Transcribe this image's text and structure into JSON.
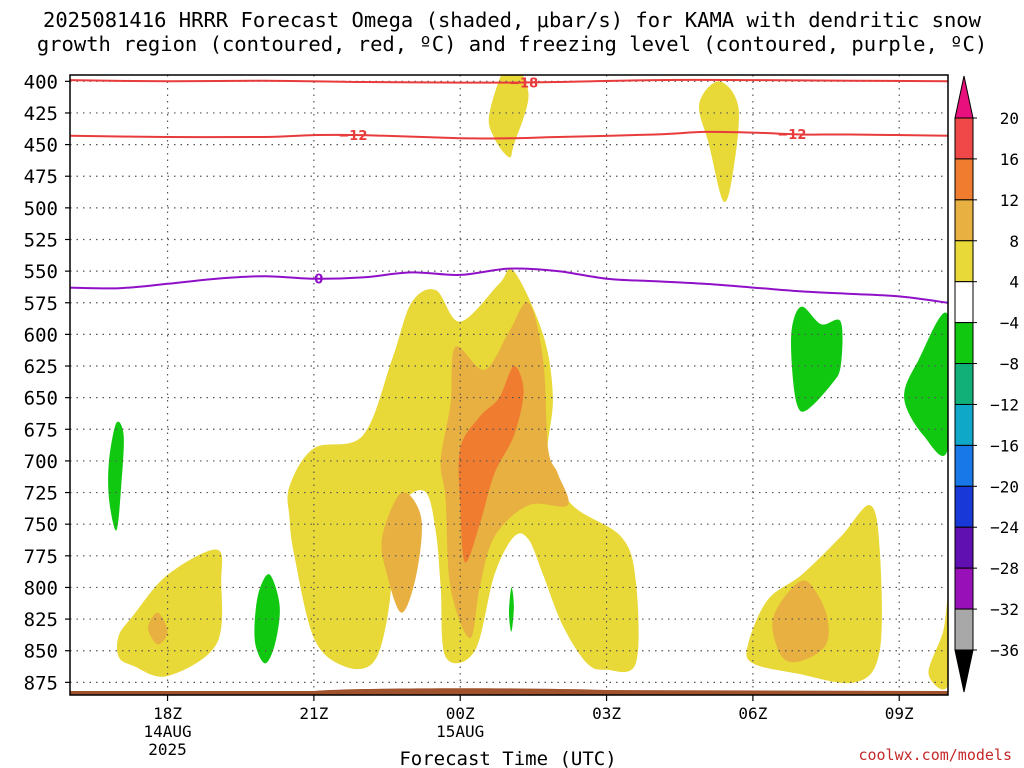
{
  "title_lines": [
    "2025081416 HRRR Forecast Omega (shaded, μbar/s) for KAMA with dendritic snow",
    "growth region (contoured, red, ºC) and freezing level (contoured, purple, ºC)"
  ],
  "credit": "coolwx.com/models",
  "chart_data": {
    "type": "time-height contour",
    "xlabel": "Forecast Time (UTC)",
    "ylabel": "",
    "x_ticks": [
      {
        "hour": 2,
        "label": "18Z",
        "sub": [
          "14AUG",
          "2025"
        ]
      },
      {
        "hour": 5,
        "label": "21Z",
        "sub": []
      },
      {
        "hour": 8,
        "label": "00Z",
        "sub": [
          "15AUG"
        ]
      },
      {
        "hour": 11,
        "label": "03Z",
        "sub": []
      },
      {
        "hour": 14,
        "label": "06Z",
        "sub": []
      },
      {
        "hour": 17,
        "label": "09Z",
        "sub": []
      }
    ],
    "xlim_hours": [
      0,
      18
    ],
    "y_ticks": [
      400,
      425,
      450,
      475,
      500,
      525,
      550,
      575,
      600,
      625,
      650,
      675,
      700,
      725,
      750,
      775,
      800,
      825,
      850,
      875
    ],
    "ylim_hPa": [
      395,
      885
    ],
    "colorbar": {
      "labels": [
        "20",
        "16",
        "12",
        "8",
        "4",
        "−4",
        "−8",
        "−12",
        "−16",
        "−20",
        "−24",
        "−28",
        "−32",
        "−36"
      ],
      "colors": [
        "#f04848",
        "#f07c30",
        "#e8b040",
        "#e8d838",
        "#ffffff",
        "#10c810",
        "#10b078",
        "#10a8c8",
        "#1878e8",
        "#1838d8",
        "#6010b0",
        "#9810b8",
        "#a8a8a8"
      ],
      "top_arrow_color": "#e8107c",
      "bottom_arrow_color": "#000000"
    },
    "contours": [
      {
        "label": "−18",
        "color": "#e83c3c",
        "points": [
          [
            0,
            399
          ],
          [
            2,
            400
          ],
          [
            4,
            399.5
          ],
          [
            6,
            400.5
          ],
          [
            8,
            401
          ],
          [
            9,
            401
          ],
          [
            10,
            400.5
          ],
          [
            12,
            399
          ],
          [
            14,
            399
          ],
          [
            16,
            399.5
          ],
          [
            18,
            400
          ]
        ]
      },
      {
        "label": "−12",
        "color": "#e83c3c",
        "points": [
          [
            0,
            443
          ],
          [
            2,
            444
          ],
          [
            4,
            444
          ],
          [
            5,
            442.5
          ],
          [
            6,
            442.5
          ],
          [
            8,
            445
          ],
          [
            9,
            445
          ],
          [
            10,
            444
          ],
          [
            12,
            442
          ],
          [
            13,
            440
          ],
          [
            14,
            440.5
          ],
          [
            15,
            442
          ],
          [
            16,
            442
          ],
          [
            18,
            443
          ]
        ]
      },
      {
        "label": "0",
        "color": "#9010c8",
        "points": [
          [
            0,
            563
          ],
          [
            1,
            563.5
          ],
          [
            2,
            560
          ],
          [
            3,
            556
          ],
          [
            4,
            554
          ],
          [
            5,
            556
          ],
          [
            6,
            555
          ],
          [
            7,
            551
          ],
          [
            8,
            553
          ],
          [
            9,
            548
          ],
          [
            10,
            550
          ],
          [
            11,
            556
          ],
          [
            12,
            558
          ],
          [
            13,
            560
          ],
          [
            14,
            563
          ],
          [
            15,
            566
          ],
          [
            16,
            568
          ],
          [
            17,
            570
          ],
          [
            18,
            575
          ]
        ]
      }
    ],
    "omega_regions": [
      {
        "value": 4,
        "color": "#e8d838",
        "points": [
          [
            1,
            838
          ],
          [
            1.3,
            822
          ],
          [
            2,
            790
          ],
          [
            3,
            770
          ],
          [
            3.1,
            795
          ],
          [
            3,
            845
          ],
          [
            2,
            870
          ],
          [
            1.3,
            862
          ],
          [
            1,
            855
          ]
        ]
      },
      {
        "value": 4,
        "color": "#e8d838",
        "points": [
          [
            4.5,
            720
          ],
          [
            5,
            690
          ],
          [
            6,
            680
          ],
          [
            6.6,
            620
          ],
          [
            7,
            575
          ],
          [
            7.5,
            565
          ],
          [
            8,
            590
          ],
          [
            8.8,
            560
          ],
          [
            9.1,
            550
          ],
          [
            9.7,
            600
          ],
          [
            9.9,
            650
          ],
          [
            9.8,
            700
          ],
          [
            10.3,
            735
          ],
          [
            11.3,
            760
          ],
          [
            11.6,
            795
          ],
          [
            11.6,
            860
          ],
          [
            11,
            865
          ],
          [
            10.6,
            860
          ],
          [
            10.1,
            830
          ],
          [
            9.7,
            790
          ],
          [
            9.4,
            762
          ],
          [
            9.1,
            760
          ],
          [
            8.7,
            790
          ],
          [
            8.3,
            850
          ],
          [
            7.7,
            855
          ],
          [
            7.6,
            800
          ],
          [
            7.5,
            756
          ],
          [
            7.3,
            725
          ],
          [
            6.9,
            730
          ],
          [
            6.7,
            760
          ],
          [
            6.5,
            825
          ],
          [
            6.2,
            860
          ],
          [
            5.6,
            862
          ],
          [
            5,
            840
          ],
          [
            4.6,
            775
          ],
          [
            4.5,
            745
          ]
        ]
      },
      {
        "value": 4,
        "color": "#e8d838",
        "points": [
          [
            8.6,
            425
          ],
          [
            9,
            385
          ],
          [
            9.4,
            410
          ],
          [
            9.1,
            450
          ],
          [
            9,
            460
          ],
          [
            8.7,
            445
          ]
        ]
      },
      {
        "value": 4,
        "color": "#e8d838",
        "points": [
          [
            12.9,
            418
          ],
          [
            13.3,
            400
          ],
          [
            13.7,
            420
          ],
          [
            13.6,
            470
          ],
          [
            13.4,
            495
          ],
          [
            13.1,
            450
          ]
        ]
      },
      {
        "value": 4,
        "color": "#e8d838",
        "points": [
          [
            13.9,
            845
          ],
          [
            14.3,
            810
          ],
          [
            15,
            790
          ],
          [
            15.8,
            760
          ],
          [
            16.4,
            735
          ],
          [
            16.6,
            770
          ],
          [
            16.6,
            850
          ],
          [
            16.1,
            875
          ],
          [
            14.9,
            868
          ],
          [
            14,
            860
          ]
        ]
      },
      {
        "value": 4,
        "color": "#e8d838",
        "points": [
          [
            17.6,
            868
          ],
          [
            17.9,
            835
          ],
          [
            18,
            810
          ],
          [
            18,
            877
          ]
        ]
      },
      {
        "value": 8,
        "color": "#e8b040",
        "points": [
          [
            6.4,
            760
          ],
          [
            6.8,
            725
          ],
          [
            7.2,
            745
          ],
          [
            7.1,
            790
          ],
          [
            6.8,
            820
          ],
          [
            6.5,
            790
          ]
        ]
      },
      {
        "value": 8,
        "color": "#e8b040",
        "points": [
          [
            7.8,
            655
          ],
          [
            7.9,
            610
          ],
          [
            8.5,
            628
          ],
          [
            9,
            598
          ],
          [
            9.4,
            575
          ],
          [
            9.7,
            620
          ],
          [
            9.8,
            690
          ],
          [
            10,
            710
          ],
          [
            10.2,
            735
          ],
          [
            9.4,
            735
          ],
          [
            8.7,
            760
          ],
          [
            8.4,
            800
          ],
          [
            8.2,
            840
          ],
          [
            7.8,
            800
          ],
          [
            7.7,
            730
          ],
          [
            7.6,
            700
          ]
        ]
      },
      {
        "value": 8,
        "color": "#e8b040",
        "points": [
          [
            1.6,
            832
          ],
          [
            1.8,
            820
          ],
          [
            2,
            835
          ],
          [
            1.8,
            845
          ]
        ]
      },
      {
        "value": 8,
        "color": "#e8b040",
        "points": [
          [
            14.4,
            828
          ],
          [
            14.7,
            805
          ],
          [
            15.1,
            795
          ],
          [
            15.5,
            820
          ],
          [
            15.5,
            845
          ],
          [
            15,
            858
          ],
          [
            14.6,
            855
          ]
        ]
      },
      {
        "value": 12,
        "color": "#f07c30",
        "points": [
          [
            8,
            690
          ],
          [
            8.4,
            665
          ],
          [
            8.8,
            650
          ],
          [
            9.1,
            625
          ],
          [
            9.3,
            645
          ],
          [
            9.1,
            680
          ],
          [
            8.7,
            710
          ],
          [
            8.4,
            750
          ],
          [
            8.1,
            780
          ],
          [
            8,
            735
          ]
        ]
      }
    ],
    "omega_negative_regions": [
      {
        "value": -4,
        "color": "#10c810",
        "points": [
          [
            0.8,
            700
          ],
          [
            0.95,
            670
          ],
          [
            1.1,
            680
          ],
          [
            1.05,
            720
          ],
          [
            0.95,
            755
          ],
          [
            0.8,
            730
          ]
        ]
      },
      {
        "value": -4,
        "color": "#10c810",
        "points": [
          [
            3.8,
            820
          ],
          [
            3.9,
            800
          ],
          [
            4.1,
            790
          ],
          [
            4.3,
            815
          ],
          [
            4.2,
            845
          ],
          [
            4,
            860
          ],
          [
            3.8,
            845
          ]
        ]
      },
      {
        "value": -4,
        "color": "#10c810",
        "points": [
          [
            9,
            820
          ],
          [
            9.05,
            800
          ],
          [
            9.1,
            815
          ],
          [
            9.05,
            835
          ]
        ]
      },
      {
        "value": -4,
        "color": "#10c810",
        "points": [
          [
            14.8,
            625
          ],
          [
            14.8,
            595
          ],
          [
            15,
            578
          ],
          [
            15.4,
            592
          ],
          [
            15.8,
            590
          ],
          [
            15.8,
            625
          ],
          [
            15.6,
            640
          ],
          [
            15.1,
            660
          ],
          [
            14.9,
            655
          ]
        ]
      },
      {
        "value": -4,
        "color": "#10c810",
        "points": [
          [
            17.1,
            650
          ],
          [
            17.4,
            620
          ],
          [
            18,
            585
          ],
          [
            18,
            690
          ],
          [
            17.5,
            680
          ]
        ]
      }
    ],
    "terrain_color": "#a0522d"
  }
}
